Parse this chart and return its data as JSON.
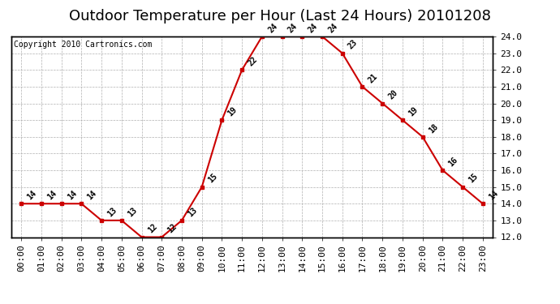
{
  "title": "Outdoor Temperature per Hour (Last 24 Hours) 20101208",
  "copyright": "Copyright 2010 Cartronics.com",
  "hours": [
    "00:00",
    "01:00",
    "02:00",
    "03:00",
    "04:00",
    "05:00",
    "06:00",
    "07:00",
    "08:00",
    "09:00",
    "10:00",
    "11:00",
    "12:00",
    "13:00",
    "14:00",
    "15:00",
    "16:00",
    "17:00",
    "18:00",
    "19:00",
    "20:00",
    "21:00",
    "22:00",
    "23:00"
  ],
  "temperatures": [
    14,
    14,
    14,
    14,
    13,
    13,
    12,
    12,
    13,
    15,
    19,
    22,
    24,
    24,
    24,
    24,
    23,
    21,
    20,
    19,
    18,
    16,
    15,
    14
  ],
  "line_color": "#cc0000",
  "marker_color": "#cc0000",
  "bg_color": "#ffffff",
  "grid_color": "#b0b0b0",
  "ylim_min": 12.0,
  "ylim_max": 24.0,
  "ytick_step": 1.0,
  "title_fontsize": 13,
  "copyright_fontsize": 7,
  "tick_fontsize": 8,
  "label_fontsize": 7
}
